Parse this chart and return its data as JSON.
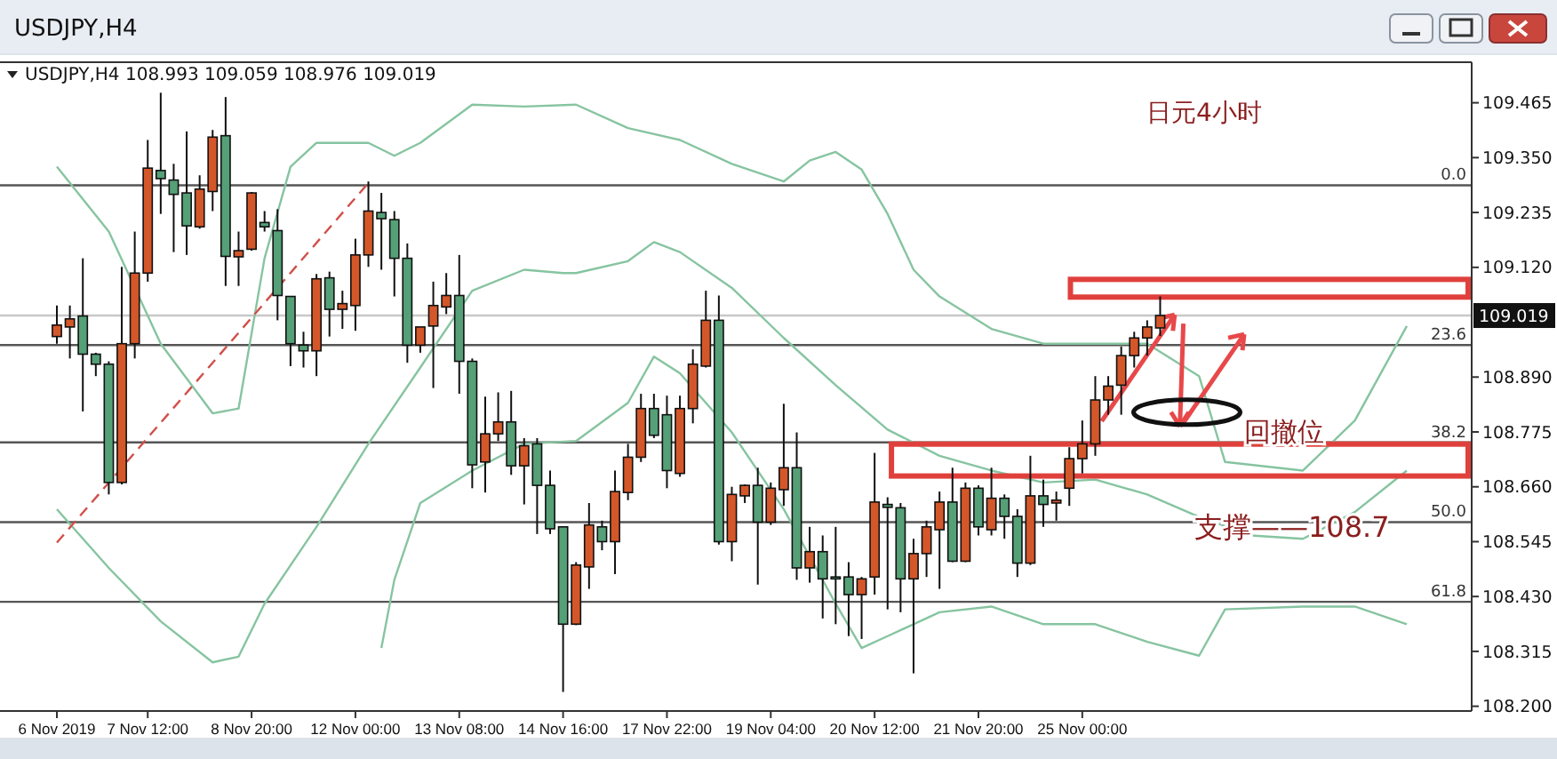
{
  "chart_data": {
    "type": "candlestick",
    "title": "USDJPY,H4",
    "subtitle": "USDJPY,H4 108.993 109.059 108.976 109.019",
    "categories": [
      "6 Nov 2019",
      null,
      null,
      null,
      null,
      null,
      null,
      "7 Nov 12:00",
      null,
      null,
      null,
      null,
      null,
      null,
      null,
      "8 Nov 20:00",
      null,
      null,
      null,
      null,
      null,
      null,
      null,
      "12 Nov 00:00",
      null,
      null,
      null,
      null,
      null,
      null,
      null,
      "13 Nov 08:00",
      null,
      null,
      null,
      null,
      null,
      null,
      null,
      "14 Nov 16:00",
      null,
      null,
      null,
      null,
      null,
      null,
      null,
      "17 Nov 22:00",
      null,
      null,
      null,
      null,
      null,
      null,
      null,
      "19 Nov 04:00",
      null,
      null,
      null,
      null,
      null,
      null,
      null,
      "20 Nov 12:00",
      null,
      null,
      null,
      null,
      null,
      null,
      null,
      "21 Nov 20:00",
      null,
      null,
      null,
      null,
      null,
      null,
      null,
      "25 Nov 00:00",
      null,
      null,
      null,
      null,
      null,
      null,
      null,
      null,
      null,
      null,
      null,
      null,
      null,
      null,
      null,
      null,
      null,
      null,
      null,
      null,
      null,
      null,
      null,
      null,
      null
    ],
    "ohlc": [
      [
        108.975,
        109.04,
        108.96,
        108.999
      ],
      [
        108.995,
        109.04,
        108.929,
        109.012
      ],
      [
        109.018,
        109.139,
        108.818,
        108.938
      ],
      [
        108.938,
        108.941,
        108.892,
        108.917
      ],
      [
        108.917,
        108.923,
        108.644,
        108.669
      ],
      [
        108.669,
        109.121,
        108.665,
        108.96
      ],
      [
        108.96,
        109.195,
        108.929,
        109.108
      ],
      [
        109.108,
        109.387,
        109.09,
        109.328
      ],
      [
        109.323,
        109.486,
        109.232,
        109.306
      ],
      [
        109.303,
        109.337,
        109.152,
        109.273
      ],
      [
        109.276,
        109.405,
        109.146,
        109.207
      ],
      [
        109.205,
        109.313,
        109.201,
        109.284
      ],
      [
        109.279,
        109.408,
        109.238,
        109.393
      ],
      [
        109.396,
        109.477,
        109.081,
        109.143
      ],
      [
        109.142,
        109.195,
        109.081,
        109.155
      ],
      [
        109.158,
        109.278,
        109.155,
        109.276
      ],
      [
        109.214,
        109.238,
        109.195,
        109.205
      ],
      [
        109.197,
        109.242,
        109.009,
        109.061
      ],
      [
        109.059,
        109.059,
        108.913,
        108.96
      ],
      [
        108.957,
        108.985,
        108.91,
        108.945
      ],
      [
        108.945,
        109.106,
        108.892,
        109.096
      ],
      [
        109.098,
        109.111,
        108.975,
        109.032
      ],
      [
        109.032,
        109.071,
        108.991,
        109.044
      ],
      [
        109.04,
        109.18,
        108.987,
        109.146
      ],
      [
        109.146,
        109.3,
        109.121,
        109.238
      ],
      [
        109.235,
        109.276,
        109.115,
        109.222
      ],
      [
        109.22,
        109.238,
        109.059,
        109.139
      ],
      [
        109.139,
        109.17,
        108.92,
        108.957
      ],
      [
        108.957,
        108.995,
        108.941,
        108.995
      ],
      [
        108.997,
        109.09,
        108.867,
        109.04
      ],
      [
        109.037,
        109.108,
        109.022,
        109.061
      ],
      [
        109.061,
        109.146,
        108.855,
        108.923
      ],
      [
        108.923,
        108.929,
        108.657,
        108.706
      ],
      [
        108.712,
        108.849,
        108.648,
        108.771
      ],
      [
        108.771,
        108.858,
        108.756,
        108.796
      ],
      [
        108.796,
        108.861,
        108.685,
        108.704
      ],
      [
        108.704,
        108.762,
        108.623,
        108.746
      ],
      [
        108.75,
        108.762,
        108.561,
        108.663
      ],
      [
        108.663,
        108.694,
        108.561,
        108.572
      ],
      [
        108.576,
        108.576,
        108.23,
        108.372
      ],
      [
        108.372,
        108.502,
        108.37,
        108.496
      ],
      [
        108.492,
        108.626,
        108.446,
        108.58
      ],
      [
        108.576,
        108.589,
        108.527,
        108.545
      ],
      [
        108.545,
        108.694,
        108.477,
        108.65
      ],
      [
        108.648,
        108.75,
        108.632,
        108.722
      ],
      [
        108.722,
        108.855,
        108.712,
        108.824
      ],
      [
        108.824,
        108.855,
        108.762,
        108.768
      ],
      [
        108.811,
        108.851,
        108.657,
        108.694
      ],
      [
        108.688,
        108.851,
        108.681,
        108.824
      ],
      [
        108.824,
        108.948,
        108.793,
        108.917
      ],
      [
        108.913,
        109.071,
        108.91,
        109.009
      ],
      [
        109.009,
        109.061,
        108.539,
        108.545
      ],
      [
        108.545,
        108.66,
        108.504,
        108.644
      ],
      [
        108.641,
        108.665,
        108.626,
        108.663
      ],
      [
        108.663,
        108.7,
        108.455,
        108.586
      ],
      [
        108.586,
        108.669,
        108.58,
        108.657
      ],
      [
        108.654,
        108.834,
        108.62,
        108.7
      ],
      [
        108.7,
        108.774,
        108.465,
        108.49
      ],
      [
        108.49,
        108.576,
        108.459,
        108.524
      ],
      [
        108.524,
        108.558,
        108.384,
        108.467
      ],
      [
        108.471,
        108.576,
        108.372,
        108.467
      ],
      [
        108.471,
        108.502,
        108.347,
        108.434
      ],
      [
        108.434,
        108.471,
        108.341,
        108.467
      ],
      [
        108.471,
        108.731,
        108.434,
        108.628
      ],
      [
        108.623,
        108.638,
        108.403,
        108.617
      ],
      [
        108.616,
        108.626,
        108.397,
        108.467
      ],
      [
        108.467,
        108.551,
        108.269,
        108.52
      ],
      [
        108.52,
        108.589,
        108.471,
        108.576
      ],
      [
        108.57,
        108.65,
        108.446,
        108.628
      ],
      [
        108.628,
        108.7,
        108.502,
        108.504
      ],
      [
        108.504,
        108.669,
        108.502,
        108.657
      ],
      [
        108.657,
        108.663,
        108.558,
        108.576
      ],
      [
        108.57,
        108.7,
        108.558,
        108.636
      ],
      [
        108.636,
        108.644,
        108.551,
        108.598
      ],
      [
        108.598,
        108.613,
        108.471,
        108.5
      ],
      [
        108.5,
        108.725,
        108.496,
        108.641
      ],
      [
        108.641,
        108.675,
        108.576,
        108.623
      ],
      [
        108.626,
        108.65,
        108.589,
        108.632
      ],
      [
        108.657,
        108.743,
        108.62,
        108.719
      ],
      [
        108.719,
        108.799,
        108.688,
        108.75
      ],
      [
        108.75,
        108.892,
        108.725,
        108.842
      ],
      [
        108.842,
        108.892,
        108.811,
        108.871
      ],
      [
        108.873,
        108.954,
        108.811,
        108.935
      ],
      [
        108.935,
        108.985,
        108.91,
        108.972
      ],
      [
        108.972,
        109.009,
        108.935,
        108.995
      ],
      [
        108.993,
        109.059,
        108.976,
        109.019
      ],
      null,
      null,
      null,
      null,
      null,
      null,
      null,
      null,
      null,
      null,
      null,
      null,
      null,
      null,
      null,
      null,
      null,
      null,
      null
    ],
    "colors": [
      "#d4572a",
      "#d4572a",
      "#55a077",
      "#55a077",
      "#55a077",
      "#d4572a",
      "#d4572a",
      "#d4572a",
      "#55a077",
      "#55a077",
      "#55a077",
      "#d4572a",
      "#d4572a",
      "#55a077",
      "#d4572a",
      "#d4572a",
      "#55a077",
      "#55a077",
      "#55a077",
      "#55a077",
      "#d4572a",
      "#55a077",
      "#d4572a",
      "#d4572a",
      "#d4572a",
      "#55a077",
      "#55a077",
      "#55a077",
      "#d4572a",
      "#d4572a",
      "#d4572a",
      "#55a077",
      "#55a077",
      "#d4572a",
      "#d4572a",
      "#55a077",
      "#d4572a",
      "#55a077",
      "#55a077",
      "#55a077",
      "#d4572a",
      "#d4572a",
      "#55a077",
      "#d4572a",
      "#d4572a",
      "#d4572a",
      "#55a077",
      "#55a077",
      "#d4572a",
      "#d4572a",
      "#d4572a",
      "#55a077",
      "#d4572a",
      "#d4572a",
      "#55a077",
      "#d4572a",
      "#d4572a",
      "#55a077",
      "#d4572a",
      "#55a077",
      "#55a077",
      "#55a077",
      "#d4572a",
      "#d4572a",
      "#55a077",
      "#55a077",
      "#d4572a",
      "#d4572a",
      "#d4572a",
      "#55a077",
      "#d4572a",
      "#55a077",
      "#d4572a",
      "#55a077",
      "#55a077",
      "#d4572a",
      "#55a077",
      "#d4572a",
      "#d4572a",
      "#d4572a",
      "#d4572a",
      "#d4572a",
      "#d4572a",
      "#d4572a",
      "#d4572a",
      "#d4572a",
      null,
      null,
      null,
      null,
      null,
      null,
      null,
      null,
      null,
      null,
      null,
      null,
      null,
      null,
      null,
      null,
      null,
      null,
      null
    ],
    "series": [
      {
        "type": "line",
        "color": "#86c4a0",
        "values": [
          109.331,
          null,
          null,
          null,
          109.195,
          null,
          null,
          null,
          108.96,
          null,
          null,
          null,
          108.814,
          null,
          108.824,
          null,
          109.139,
          null,
          109.331,
          null,
          109.381,
          null,
          null,
          null,
          109.381,
          null,
          109.354,
          null,
          109.381,
          null,
          null,
          null,
          109.461,
          null,
          null,
          null,
          109.457,
          null,
          null,
          null,
          109.461,
          null,
          null,
          null,
          109.412,
          null,
          null,
          null,
          109.387,
          null,
          null,
          null,
          109.337,
          null,
          null,
          null,
          109.3,
          null,
          109.344,
          null,
          109.362,
          null,
          109.325,
          null,
          109.232,
          null,
          109.115,
          null,
          109.059,
          null,
          null,
          null,
          108.991,
          null,
          null,
          null,
          108.96,
          null,
          null,
          null,
          108.96,
          null,
          null,
          null,
          108.96,
          null,
          null,
          null,
          108.892,
          null,
          108.712,
          null,
          null,
          null,
          108.7,
          null,
          108.694,
          null,
          null,
          null,
          108.799,
          null,
          null,
          null,
          108.997
        ]
      },
      {
        "type": "line",
        "color": "#86c4a0",
        "values": [
          108.613,
          null,
          null,
          null,
          108.49,
          null,
          null,
          null,
          108.378,
          null,
          null,
          null,
          108.292,
          null,
          108.304,
          null,
          108.415,
          null,
          null,
          null,
          108.576,
          null,
          null,
          null,
          108.75,
          null,
          null,
          null,
          108.91,
          null,
          null,
          null,
          109.071,
          null,
          null,
          null,
          109.115,
          null,
          null,
          109.108,
          109.108,
          null,
          null,
          null,
          109.133,
          null,
          109.173,
          null,
          109.152,
          null,
          null,
          null,
          109.077,
          null,
          null,
          null,
          108.972,
          null,
          null,
          null,
          108.873,
          null,
          null,
          null,
          108.78,
          null,
          null,
          null,
          108.725,
          null,
          null,
          null,
          108.694,
          null,
          null,
          null,
          108.669,
          null,
          null,
          null,
          108.675,
          null,
          null,
          null,
          108.644,
          null,
          null,
          null,
          108.597,
          null,
          null,
          null,
          108.558,
          null,
          null,
          null,
          108.551,
          null,
          null,
          null,
          108.607,
          null,
          null,
          null,
          108.694
        ]
      },
      {
        "type": "line",
        "color": "#86c4a0",
        "values": [
          null,
          null,
          null,
          null,
          null,
          null,
          null,
          null,
          null,
          null,
          null,
          null,
          null,
          null,
          null,
          null,
          null,
          null,
          null,
          null,
          null,
          null,
          null,
          null,
          null,
          108.322,
          108.465,
          null,
          108.626,
          null,
          null,
          null,
          108.694,
          null,
          null,
          null,
          108.75,
          null,
          null,
          null,
          108.756,
          null,
          null,
          null,
          108.836,
          null,
          108.933,
          null,
          108.898,
          null,
          null,
          null,
          108.774,
          null,
          null,
          null,
          108.613,
          null,
          null,
          null,
          108.415,
          null,
          108.322,
          null,
          108.347,
          null,
          null,
          null,
          108.397,
          null,
          null,
          null,
          108.409,
          null,
          null,
          null,
          108.372,
          null,
          null,
          null,
          108.372,
          null,
          null,
          null,
          108.335,
          null,
          null,
          null,
          108.306,
          null,
          108.403,
          null,
          null,
          null,
          null,
          null,
          108.409,
          null,
          null,
          null,
          108.409,
          null,
          null,
          null,
          108.372
        ]
      },
      {
        "type": "line",
        "color": "#d0504a",
        "line_style": "dashed",
        "values": [
          108.543,
          null,
          null,
          null,
          null,
          null,
          null,
          null,
          null,
          null,
          null,
          null,
          null,
          null,
          null,
          null,
          null,
          null,
          null,
          null,
          null,
          null,
          null,
          null,
          109.297,
          null,
          null,
          null,
          null,
          null,
          null,
          null,
          null,
          null,
          null,
          null,
          null,
          null,
          null,
          null,
          null,
          null,
          null,
          null,
          null,
          null,
          null,
          null,
          null,
          null,
          null,
          null,
          null,
          null,
          null,
          null,
          null,
          null,
          null,
          null,
          null,
          null,
          null,
          null,
          null,
          null,
          null,
          null,
          null,
          null,
          null,
          null,
          null,
          null,
          null,
          null,
          null,
          null,
          null,
          null,
          null,
          null,
          null,
          null,
          null,
          null,
          null,
          null,
          null,
          null,
          null,
          null,
          null,
          null,
          null,
          null,
          null,
          null,
          null,
          null,
          null,
          null,
          null,
          null,
          null
        ]
      }
    ],
    "ylim": [
      108.19,
      109.55
    ],
    "yticks": [
      {
        "value": 108.2,
        "label": "108.200"
      },
      {
        "value": 108.315,
        "label": "108.315"
      },
      {
        "value": 108.43,
        "label": "108.430"
      },
      {
        "value": 108.545,
        "label": "108.545"
      },
      {
        "value": 108.66,
        "label": "108.660"
      },
      {
        "value": 108.775,
        "label": "108.775"
      },
      {
        "value": 108.89,
        "label": "108.890"
      },
      {
        "value": 109.12,
        "label": "109.120"
      },
      {
        "value": 109.235,
        "label": "109.235"
      },
      {
        "value": 109.35,
        "label": "109.350"
      },
      {
        "value": 109.465,
        "label": "109.465"
      }
    ],
    "ref_lines": [
      {
        "axis": "y",
        "value": 109.292,
        "color": "#555555"
      },
      {
        "axis": "y",
        "value": 108.957,
        "color": "#555555"
      },
      {
        "axis": "y",
        "value": 108.753,
        "color": "#555555"
      },
      {
        "axis": "y",
        "value": 108.586,
        "color": "#555555"
      },
      {
        "axis": "y",
        "value": 108.419,
        "color": "#555555"
      },
      {
        "axis": "y",
        "value": 109.019,
        "label": "109.019",
        "color": "#c8c8c8"
      }
    ],
    "annotations": [
      "日元4小时",
      "回撤位",
      "支撑——108.7",
      {
        "text": "0.0",
        "y": 109.292
      },
      {
        "text": "23.6",
        "y": 108.957
      },
      {
        "text": "38.2",
        "y": 108.753
      },
      {
        "text": "50.0",
        "y": 108.586
      },
      {
        "text": "61.8",
        "y": 108.419
      }
    ]
  }
}
